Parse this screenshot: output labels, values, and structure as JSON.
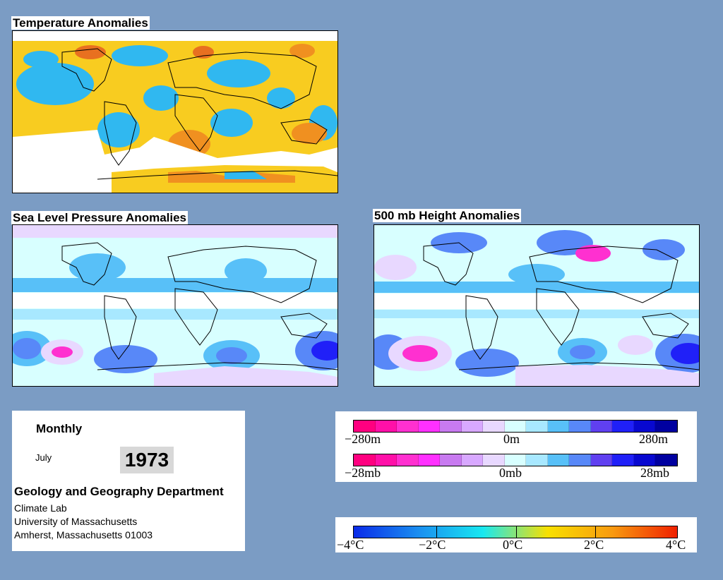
{
  "maps": {
    "temperature": {
      "title": "Temperature Anomalies"
    },
    "slp": {
      "title": "Sea Level Pressure Anomalies"
    },
    "height500": {
      "title": "500 mb Height Anomalies"
    }
  },
  "info": {
    "period": "Monthly",
    "month": "July",
    "year": "1973",
    "department": "Geology and Geography Department",
    "lab": "Climate Lab",
    "university": "University of Massachusetts",
    "address": "Amherst, Massachusetts 01003"
  },
  "legend_height": {
    "labels": [
      "−280m",
      "0m",
      "280m"
    ],
    "colors": [
      "#ff0080",
      "#ff10a8",
      "#ff30d0",
      "#ff30ff",
      "#c87af0",
      "#d8a8ff",
      "#e8d8ff",
      "#d8ffff",
      "#a8e8ff",
      "#58c0f8",
      "#5888f8",
      "#6040f0",
      "#2020f8",
      "#0808d0",
      "#0000a0"
    ]
  },
  "legend_pressure": {
    "labels": [
      "−28mb",
      "0mb",
      "28mb"
    ],
    "colors": [
      "#ff0080",
      "#ff10a8",
      "#ff30d0",
      "#ff30ff",
      "#c87af0",
      "#d8a8ff",
      "#e8d8ff",
      "#d8ffff",
      "#a8e8ff",
      "#58c0f8",
      "#5888f8",
      "#6040f0",
      "#2020f8",
      "#0808d0",
      "#0000a0"
    ]
  },
  "legend_temperature": {
    "labels": [
      "−4°C",
      "−2°C",
      "0°C",
      "2°C",
      "4°C"
    ],
    "gradient": [
      "#0a2ae8",
      "#1a8ef0",
      "#18e8f0",
      "#f8e000",
      "#f89a10",
      "#f02000"
    ]
  }
}
